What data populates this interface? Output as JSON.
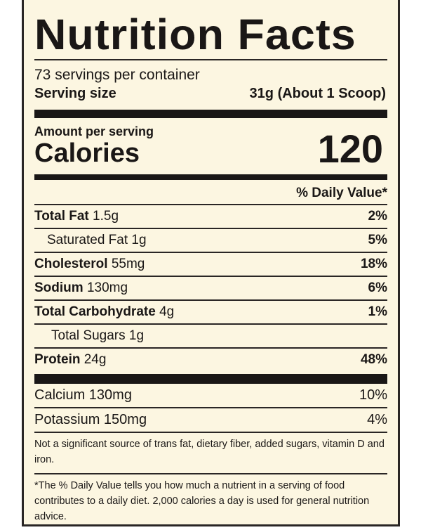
{
  "title": "Nutrition Facts",
  "servings_per_container": "73 servings per container",
  "serving_size": {
    "label": "Serving size",
    "value": "31g (About 1 Scoop)"
  },
  "amount_per_serving": "Amount per serving",
  "calories": {
    "label": "Calories",
    "value": "120"
  },
  "daily_value_header": "% Daily Value*",
  "nutrients": [
    {
      "name": "Total Fat",
      "amount": "1.5g",
      "dv": "2%",
      "bold": true
    },
    {
      "name": "Saturated Fat",
      "amount": "1g",
      "dv": "5%",
      "bold": false
    },
    {
      "name": "Cholesterol",
      "amount": "55mg",
      "dv": "18%",
      "bold": true
    },
    {
      "name": "Sodium",
      "amount": "130mg",
      "dv": "6%",
      "bold": true
    },
    {
      "name": "Total Carbohydrate",
      "amount": "4g",
      "dv": "1%",
      "bold": true
    },
    {
      "name": "Total Sugars",
      "amount": "1g",
      "dv": "",
      "bold": false
    },
    {
      "name": "Protein",
      "amount": "24g",
      "dv": "48%",
      "bold": true
    }
  ],
  "minerals": [
    {
      "name": "Calcium 130mg",
      "dv": "10%"
    },
    {
      "name": "Potassium 150mg",
      "dv": "4%"
    }
  ],
  "note_insignificant": "Not a significant source of trans fat, dietary fiber, added sugars, vitamin D and iron.",
  "note_daily_value": "*The % Daily Value tells you how much a nutrient in a serving of food contributes to a daily diet. 2,000 calories a day is used for general nutrition advice."
}
